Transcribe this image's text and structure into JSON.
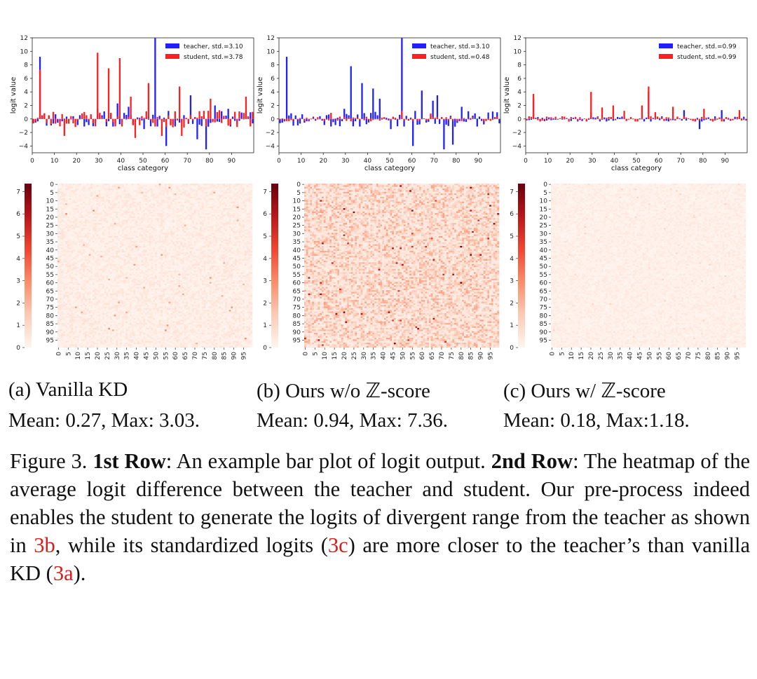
{
  "panels": [
    {
      "id": "a",
      "caption": "(a) Vanilla KD",
      "stats": "Mean: 0.27, Max: 3.03.",
      "legend": [
        "teacher, std.=3.10",
        "student, std.=3.78"
      ]
    },
    {
      "id": "b",
      "caption": "(b) Ours w/o ℤ-score",
      "stats": "Mean: 0.94, Max: 7.36.",
      "legend": [
        "teacher, std.=3.10",
        "student, std.=0.48"
      ]
    },
    {
      "id": "c",
      "caption": "(c) Ours w/ ℤ-score",
      "stats": "Mean: 0.18, Max:1.18.",
      "legend": [
        "teacher, std.=0.99",
        "student, std.=0.99"
      ]
    }
  ],
  "colors": {
    "teacher": "#1f1fff",
    "student": "#ff1f1f",
    "heat_max": "#67000d",
    "heat_min": "#fff5f0"
  },
  "chart_data": [
    {
      "type": "bar",
      "panel": "a",
      "xlabel": "class category",
      "ylabel": "logit value",
      "ylim": [
        -5,
        12
      ],
      "xlim": [
        0,
        100
      ],
      "yticks": [
        "12",
        "10",
        "8",
        "6",
        "4",
        "2",
        "0",
        "−2",
        "−4"
      ],
      "yticks_values": [
        12,
        10,
        8,
        6,
        4,
        2,
        0,
        -2,
        -4
      ],
      "xticks": [
        "0",
        "10",
        "20",
        "30",
        "40",
        "50",
        "60",
        "70",
        "80",
        "90"
      ],
      "series": [
        {
          "name": "teacher, std.=3.10",
          "seed": 11,
          "amp": 1.2,
          "peaks": [
            [
              3,
              9.2
            ],
            [
              29,
              1.5
            ],
            [
              38,
              2.3
            ],
            [
              43,
              1.8
            ],
            [
              50,
              -1.5
            ],
            [
              55,
              12.0
            ],
            [
              60,
              -4.0
            ],
            [
              71,
              3.5
            ],
            [
              74,
              -3.0
            ],
            [
              78,
              -4.5
            ],
            [
              82,
              2.0
            ],
            [
              88,
              1.5
            ]
          ]
        },
        {
          "name": "student, std.=3.78",
          "seed": 23,
          "amp": 1.3,
          "peaks": [
            [
              3,
              7.3
            ],
            [
              14,
              -2.5
            ],
            [
              29,
              9.8
            ],
            [
              34,
              7.5
            ],
            [
              39,
              9.0
            ],
            [
              44,
              3.3
            ],
            [
              46,
              -2.8
            ],
            [
              52,
              5.3
            ],
            [
              58,
              -2.5
            ],
            [
              66,
              4.8
            ],
            [
              67,
              -2.5
            ],
            [
              80,
              3.0
            ],
            [
              96,
              3.3
            ]
          ]
        }
      ]
    },
    {
      "type": "bar",
      "panel": "b",
      "xlabel": "class category",
      "ylabel": "logit value",
      "ylim": [
        -5,
        12
      ],
      "xlim": [
        0,
        100
      ],
      "yticks": [
        "12",
        "10",
        "8",
        "6",
        "4",
        "2",
        "0",
        "−2",
        "−4"
      ],
      "yticks_values": [
        12,
        10,
        8,
        6,
        4,
        2,
        0,
        -2,
        -4
      ],
      "xticks": [
        "0",
        "10",
        "20",
        "30",
        "40",
        "50",
        "60",
        "70",
        "80",
        "90"
      ],
      "series": [
        {
          "name": "teacher, std.=3.10",
          "seed": 11,
          "amp": 1.2,
          "peaks": [
            [
              3,
              9.2
            ],
            [
              29,
              1.5
            ],
            [
              32,
              7.8
            ],
            [
              37,
              5.3
            ],
            [
              42,
              4.5
            ],
            [
              45,
              3.0
            ],
            [
              50,
              -1.5
            ],
            [
              55,
              12.0
            ],
            [
              60,
              -4.0
            ],
            [
              64,
              4.2
            ],
            [
              69,
              2.7
            ],
            [
              71,
              3.5
            ],
            [
              74,
              -4.5
            ],
            [
              78,
              -3.8
            ],
            [
              82,
              1.8
            ]
          ]
        },
        {
          "name": "student, std.=0.48",
          "seed": 37,
          "amp": 0.35,
          "peaks": [
            [
              55,
              1.2
            ],
            [
              23,
              0.9
            ],
            [
              68,
              0.8
            ]
          ]
        }
      ]
    },
    {
      "type": "bar",
      "panel": "c",
      "xlabel": "class category",
      "ylabel": "logit value",
      "ylim": [
        -5,
        12
      ],
      "xlim": [
        0,
        100
      ],
      "yticks": [
        "12",
        "10",
        "8",
        "6",
        "4",
        "2",
        "0",
        "−2",
        "−4"
      ],
      "yticks_values": [
        12,
        10,
        8,
        6,
        4,
        2,
        0,
        -2,
        -4
      ],
      "xticks": [
        "0",
        "10",
        "20",
        "30",
        "40",
        "50",
        "60",
        "70",
        "80",
        "90"
      ],
      "series": [
        {
          "name": "teacher, std.=0.99",
          "seed": 11,
          "amp": 0.4,
          "peaks": [
            [
              3,
              3.0
            ],
            [
              29,
              1.0
            ],
            [
              55,
              4.0
            ],
            [
              71,
              1.3
            ],
            [
              78,
              -1.5
            ],
            [
              88,
              1.3
            ]
          ]
        },
        {
          "name": "student, std.=0.99",
          "seed": 41,
          "amp": 0.4,
          "peaks": [
            [
              3,
              3.7
            ],
            [
              29,
              4.0
            ],
            [
              34,
              1.7
            ],
            [
              39,
              2.0
            ],
            [
              44,
              1.2
            ],
            [
              52,
              2.0
            ],
            [
              55,
              4.8
            ],
            [
              58,
              1.0
            ],
            [
              66,
              1.8
            ],
            [
              80,
              1.5
            ],
            [
              96,
              1.3
            ]
          ]
        }
      ]
    },
    {
      "type": "heatmap",
      "panel": "a",
      "rows": 100,
      "cols": 100,
      "vmin": 0,
      "vmax": 7.36,
      "mean": 0.27,
      "max": 3.03,
      "ytick_labels": [
        "0",
        "5",
        "10",
        "15",
        "20",
        "25",
        "30",
        "35",
        "40",
        "45",
        "50",
        "55",
        "60",
        "65",
        "70",
        "75",
        "80",
        "85",
        "90",
        "95"
      ],
      "xtick_labels": [
        "0",
        "5",
        "10",
        "15",
        "20",
        "25",
        "30",
        "35",
        "40",
        "45",
        "50",
        "55",
        "60",
        "65",
        "70",
        "75",
        "80",
        "85",
        "90",
        "95"
      ],
      "colorbar_ticks": [
        "7",
        "6",
        "5",
        "4",
        "3",
        "2",
        "1",
        "0"
      ],
      "colorbar_values": [
        7,
        6,
        5,
        4,
        3,
        2,
        1,
        0
      ]
    },
    {
      "type": "heatmap",
      "panel": "b",
      "rows": 100,
      "cols": 100,
      "vmin": 0,
      "vmax": 7.36,
      "mean": 0.94,
      "max": 7.36,
      "ytick_labels": [
        "0",
        "5",
        "10",
        "15",
        "20",
        "25",
        "30",
        "35",
        "40",
        "45",
        "50",
        "55",
        "60",
        "65",
        "70",
        "75",
        "80",
        "85",
        "90",
        "95"
      ],
      "xtick_labels": [
        "0",
        "5",
        "10",
        "15",
        "20",
        "25",
        "30",
        "35",
        "40",
        "45",
        "50",
        "55",
        "60",
        "65",
        "70",
        "75",
        "80",
        "85",
        "90",
        "95"
      ],
      "colorbar_ticks": [
        "7",
        "6",
        "5",
        "4",
        "3",
        "2",
        "1",
        "0"
      ],
      "colorbar_values": [
        7,
        6,
        5,
        4,
        3,
        2,
        1,
        0
      ]
    },
    {
      "type": "heatmap",
      "panel": "c",
      "rows": 100,
      "cols": 100,
      "vmin": 0,
      "vmax": 7.36,
      "mean": 0.18,
      "max": 1.18,
      "ytick_labels": [
        "0",
        "5",
        "10",
        "15",
        "20",
        "25",
        "30",
        "35",
        "40",
        "45",
        "50",
        "55",
        "60",
        "65",
        "70",
        "75",
        "80",
        "85",
        "90",
        "95"
      ],
      "xtick_labels": [
        "0",
        "5",
        "10",
        "15",
        "20",
        "25",
        "30",
        "35",
        "40",
        "45",
        "50",
        "55",
        "60",
        "65",
        "70",
        "75",
        "80",
        "85",
        "90",
        "95"
      ],
      "colorbar_ticks": [
        "7",
        "6",
        "5",
        "4",
        "3",
        "2",
        "1",
        "0"
      ],
      "colorbar_values": [
        7,
        6,
        5,
        4,
        3,
        2,
        1,
        0
      ]
    }
  ],
  "caption": {
    "label": "Figure 3.",
    "row1_bold": "1st Row",
    "row1_text": ": An example bar plot of logit output.",
    "row2_bold": "2nd Row",
    "row2_text": ": The heatmap of the average logit difference between the teacher and student. Our pre-process indeed enables the student to generate the logits of divergent range from the teacher as shown in",
    "ref_b": "3b",
    "mid_text": ", while its standardized logits (",
    "ref_c": "3c",
    "mid2_text": ") are more closer to the teacher’s than vanilla KD (",
    "ref_a": "3a",
    "end_text": ")."
  }
}
